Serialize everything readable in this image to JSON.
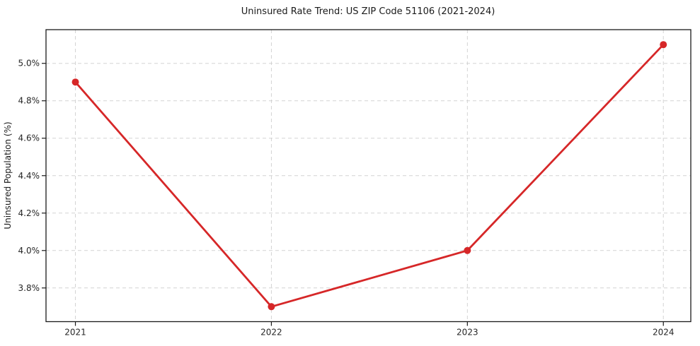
{
  "chart_data": {
    "type": "line",
    "title": "Uninsured Rate Trend: US ZIP Code 51106 (2021-2024)",
    "xlabel": "",
    "ylabel": "Uninsured Population (%)",
    "x": [
      2021,
      2022,
      2023,
      2024
    ],
    "x_tick_labels": [
      "2021",
      "2022",
      "2023",
      "2024"
    ],
    "y_ticks": [
      3.8,
      4.0,
      4.2,
      4.4,
      4.6,
      4.8,
      5.0
    ],
    "y_tick_labels": [
      "3.8%",
      "4.0%",
      "4.2%",
      "4.4%",
      "4.6%",
      "4.8%",
      "5.0%"
    ],
    "series": [
      {
        "name": "Uninsured Population (%)",
        "values": [
          4.9,
          3.7,
          4.0,
          5.1
        ]
      }
    ],
    "xlim": [
      2020.85,
      2024.14
    ],
    "ylim": [
      3.62,
      5.18
    ],
    "grid": true,
    "legend": "none",
    "colors": {
      "line": "#d62728",
      "marker": "#d62728",
      "grid": "#cccccc",
      "spine": "#1a1a1a",
      "text": "#1a1a1a",
      "background": "#ffffff"
    }
  }
}
